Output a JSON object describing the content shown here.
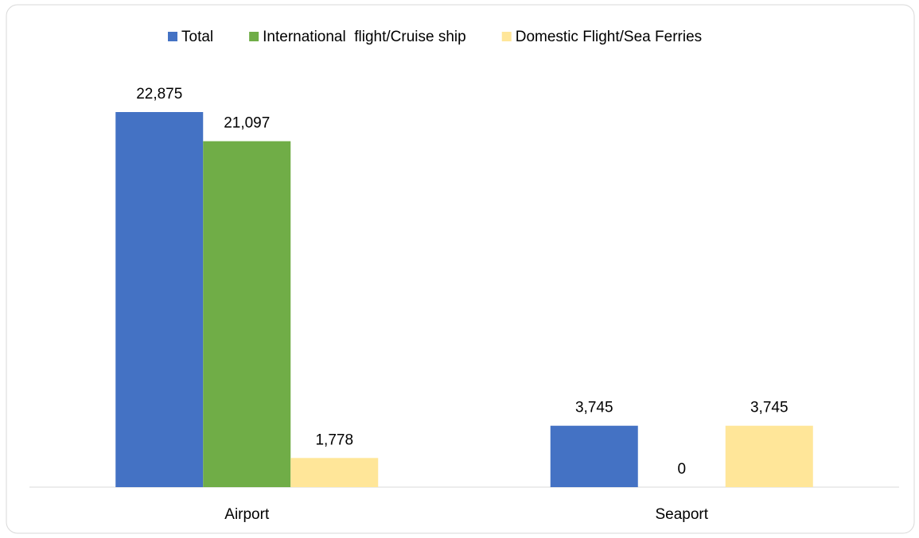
{
  "chart_data": {
    "type": "bar",
    "categories": [
      "Airport",
      "Seaport"
    ],
    "series": [
      {
        "name": "Total",
        "color": "#4472c4",
        "values": [
          22875,
          3745
        ],
        "value_labels": [
          "22,875",
          "3,745"
        ]
      },
      {
        "name": "International  flight/Cruise ship",
        "color": "#70ad47",
        "values": [
          21097,
          0
        ],
        "value_labels": [
          "21,097",
          "0"
        ]
      },
      {
        "name": "Domestic Flight/Sea Ferries",
        "color": "#ffe699",
        "values": [
          1778,
          3745
        ],
        "value_labels": [
          "1,778",
          "3,745"
        ]
      }
    ],
    "legend": "top"
  }
}
